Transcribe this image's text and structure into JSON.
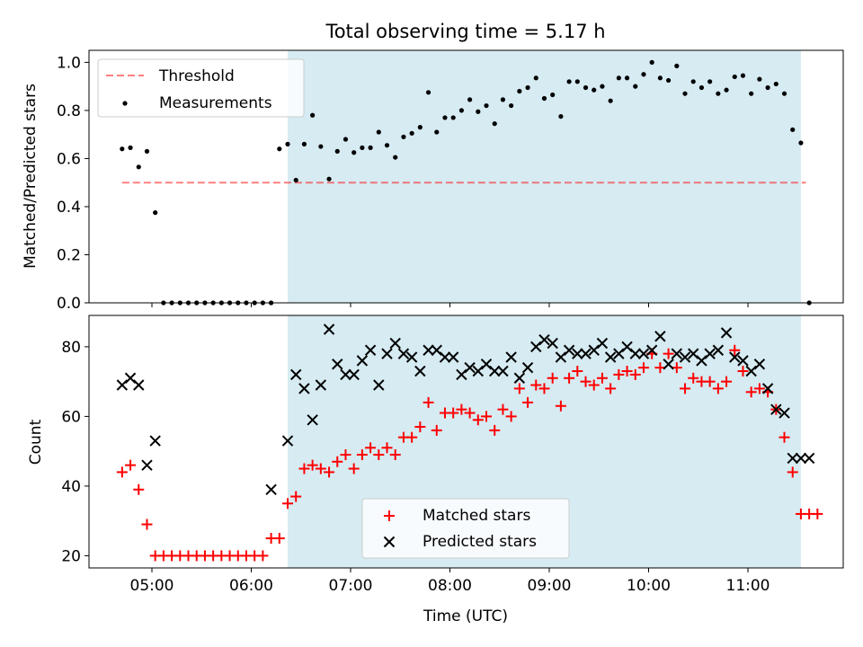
{
  "colors": {
    "shade": "#add8e6",
    "threshold": "#ff0000",
    "measurement": "#000000",
    "matched": "#ff0000",
    "predicted": "#000000"
  },
  "chart_data": [
    {
      "type": "scatter",
      "panel": "top",
      "title": "Total observing time = 5.17 h",
      "xlabel": "",
      "ylabel": "Matched/Predicted stars",
      "ylim": [
        0.0,
        1.05
      ],
      "yticks": [
        "0.0",
        "0.2",
        "0.4",
        "0.6",
        "0.8",
        "1.0"
      ],
      "grid": false,
      "legend_position": "top-left",
      "shaded_interval": {
        "start": "06:22",
        "end": "11:32"
      },
      "series": [
        {
          "name": "Threshold",
          "style": "dashed-line",
          "x": [
            "04:42",
            "11:35"
          ],
          "y": [
            0.5,
            0.5
          ]
        },
        {
          "name": "Measurements",
          "style": "dot",
          "x": [
            "04:42",
            "04:47",
            "04:52",
            "04:57",
            "05:02",
            "05:07",
            "05:12",
            "05:17",
            "05:22",
            "05:27",
            "05:32",
            "05:37",
            "05:42",
            "05:47",
            "05:52",
            "05:57",
            "06:02",
            "06:07",
            "06:12",
            "06:17",
            "06:22",
            "06:27",
            "06:32",
            "06:37",
            "06:42",
            "06:47",
            "06:52",
            "06:57",
            "07:02",
            "07:07",
            "07:12",
            "07:17",
            "07:22",
            "07:27",
            "07:32",
            "07:37",
            "07:42",
            "07:47",
            "07:52",
            "07:57",
            "08:02",
            "08:07",
            "08:12",
            "08:17",
            "08:22",
            "08:27",
            "08:32",
            "08:37",
            "08:42",
            "08:47",
            "08:52",
            "08:57",
            "09:02",
            "09:07",
            "09:12",
            "09:17",
            "09:22",
            "09:27",
            "09:32",
            "09:37",
            "09:42",
            "09:47",
            "09:52",
            "09:57",
            "10:02",
            "10:07",
            "10:12",
            "10:17",
            "10:22",
            "10:27",
            "10:32",
            "10:37",
            "10:42",
            "10:47",
            "10:52",
            "10:57",
            "11:02",
            "11:07",
            "11:12",
            "11:17",
            "11:22",
            "11:27",
            "11:32",
            "11:37"
          ],
          "y": [
            0.64,
            0.645,
            0.565,
            0.63,
            0.375,
            0.0,
            0.0,
            0.0,
            0.0,
            0.0,
            0.0,
            0.0,
            0.0,
            0.0,
            0.0,
            0.0,
            0.0,
            0.0,
            0.0,
            0.64,
            0.66,
            0.51,
            0.66,
            0.78,
            0.65,
            0.515,
            0.63,
            0.68,
            0.625,
            0.645,
            0.645,
            0.71,
            0.655,
            0.605,
            0.69,
            0.705,
            0.73,
            0.875,
            0.71,
            0.77,
            0.77,
            0.8,
            0.845,
            0.795,
            0.82,
            0.745,
            0.845,
            0.82,
            0.88,
            0.895,
            0.935,
            0.85,
            0.865,
            0.775,
            0.92,
            0.92,
            0.895,
            0.885,
            0.9,
            0.84,
            0.935,
            0.935,
            0.9,
            0.95,
            1.0,
            0.935,
            0.925,
            0.985,
            0.87,
            0.92,
            0.895,
            0.92,
            0.87,
            0.885,
            0.94,
            0.945,
            0.87,
            0.93,
            0.895,
            0.91,
            0.87,
            0.72,
            0.665,
            0.0
          ]
        }
      ]
    },
    {
      "type": "scatter",
      "panel": "bottom",
      "xlabel": "Time (UTC)",
      "ylabel": "Count",
      "ylim": [
        16.5,
        89
      ],
      "yticks": [
        "20",
        "40",
        "60",
        "80"
      ],
      "xticks": [
        "05:00",
        "06:00",
        "07:00",
        "08:00",
        "09:00",
        "10:00",
        "11:00"
      ],
      "grid": false,
      "legend_position": "lower-center",
      "shaded_interval": {
        "start": "06:22",
        "end": "11:32"
      },
      "series": [
        {
          "name": "Matched stars",
          "style": "plus",
          "x": [
            "04:42",
            "04:47",
            "04:52",
            "04:57",
            "05:02",
            "05:07",
            "05:12",
            "05:17",
            "05:22",
            "05:27",
            "05:32",
            "05:37",
            "05:42",
            "05:47",
            "05:52",
            "05:57",
            "06:02",
            "06:07",
            "06:12",
            "06:17",
            "06:22",
            "06:27",
            "06:32",
            "06:37",
            "06:42",
            "06:47",
            "06:52",
            "06:57",
            "07:02",
            "07:07",
            "07:12",
            "07:17",
            "07:22",
            "07:27",
            "07:32",
            "07:37",
            "07:42",
            "07:47",
            "07:52",
            "07:57",
            "08:02",
            "08:07",
            "08:12",
            "08:17",
            "08:22",
            "08:27",
            "08:32",
            "08:37",
            "08:42",
            "08:47",
            "08:52",
            "08:57",
            "09:02",
            "09:07",
            "09:12",
            "09:17",
            "09:22",
            "09:27",
            "09:32",
            "09:37",
            "09:42",
            "09:47",
            "09:52",
            "09:57",
            "10:02",
            "10:07",
            "10:12",
            "10:17",
            "10:22",
            "10:27",
            "10:32",
            "10:37",
            "10:42",
            "10:47",
            "10:52",
            "10:57",
            "11:02",
            "11:07",
            "11:12",
            "11:17",
            "11:22",
            "11:27",
            "11:32",
            "11:37",
            "11:42"
          ],
          "y": [
            44,
            46,
            39,
            29,
            20,
            20,
            20,
            20,
            20,
            20,
            20,
            20,
            20,
            20,
            20,
            20,
            20,
            20,
            25,
            25,
            35,
            37,
            45,
            46,
            45,
            44,
            47,
            49,
            45,
            49,
            51,
            49,
            51,
            49,
            54,
            54,
            57,
            64,
            56,
            61,
            61,
            62,
            61,
            59,
            60,
            56,
            62,
            60,
            68,
            64,
            69,
            68,
            71,
            63,
            71,
            73,
            70,
            69,
            71,
            68,
            72,
            73,
            72,
            74,
            78,
            74,
            78,
            74,
            68,
            71,
            70,
            70,
            68,
            70,
            79,
            73,
            67,
            68,
            67,
            62,
            54,
            44,
            32,
            32,
            32
          ]
        },
        {
          "name": "Predicted stars",
          "style": "x",
          "x": [
            "04:42",
            "04:47",
            "04:52",
            "04:57",
            "05:02",
            "06:12",
            "06:22",
            "06:27",
            "06:32",
            "06:37",
            "06:42",
            "06:47",
            "06:52",
            "06:57",
            "07:02",
            "07:07",
            "07:12",
            "07:17",
            "07:22",
            "07:27",
            "07:32",
            "07:37",
            "07:42",
            "07:47",
            "07:52",
            "07:57",
            "08:02",
            "08:07",
            "08:12",
            "08:17",
            "08:22",
            "08:27",
            "08:32",
            "08:37",
            "08:42",
            "08:47",
            "08:52",
            "08:57",
            "09:02",
            "09:07",
            "09:12",
            "09:17",
            "09:22",
            "09:27",
            "09:32",
            "09:37",
            "09:42",
            "09:47",
            "09:52",
            "09:57",
            "10:02",
            "10:07",
            "10:12",
            "10:17",
            "10:22",
            "10:27",
            "10:32",
            "10:37",
            "10:42",
            "10:47",
            "10:52",
            "10:57",
            "11:02",
            "11:07",
            "11:12",
            "11:17",
            "11:22",
            "11:27",
            "11:32",
            "11:37"
          ],
          "y": [
            69,
            71,
            69,
            46,
            53,
            39,
            53,
            72,
            68,
            59,
            69,
            85,
            75,
            72,
            72,
            76,
            79,
            69,
            78,
            81,
            78,
            77,
            73,
            79,
            79,
            77,
            77,
            72,
            74,
            73,
            75,
            73,
            73,
            77,
            71,
            74,
            80,
            82,
            81,
            77,
            79,
            78,
            78,
            79,
            81,
            77,
            78,
            80,
            78,
            78,
            79,
            83,
            75,
            78,
            77,
            78,
            76,
            78,
            79,
            84,
            77,
            76,
            73,
            75,
            68,
            62,
            61,
            48,
            48,
            48
          ]
        }
      ]
    }
  ]
}
